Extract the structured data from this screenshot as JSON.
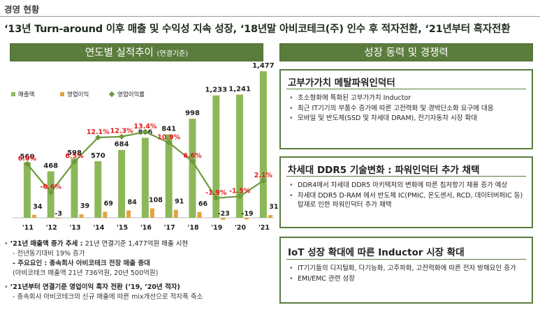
{
  "header": {
    "section_label": "경영 현황",
    "headline": "‘13년 Turn-around 이후 매출 및 수익성 지속 성장, ‘18년말 아비코테크(주) 인수 후 적자전환, ‘21년부터 흑자전환"
  },
  "left_panel": {
    "title": "연도별 실적추이",
    "subtitle": "(연결기준)"
  },
  "right_panel": {
    "title": "성장 동력 및 경쟁력"
  },
  "colors": {
    "revenue": "#8db85a",
    "op_income": "#e3a43d",
    "margin_line": "#6e9a3e",
    "margin_label": "#e41b1b",
    "accent": "#5a7c3c"
  },
  "chart_data": {
    "type": "bar",
    "categories": [
      "'11",
      "'12",
      "'13",
      "'14",
      "'15",
      "'16",
      "'17",
      "'18",
      "'19",
      "'20",
      "'21"
    ],
    "series": [
      {
        "name": "매출액",
        "type": "bar",
        "values": [
          560,
          468,
          598,
          570,
          684,
          806,
          841,
          998,
          1233,
          1241,
          1477
        ]
      },
      {
        "name": "영업이익",
        "type": "bar",
        "values": [
          34,
          -3,
          39,
          69,
          84,
          108,
          91,
          66,
          -23,
          -19,
          31
        ]
      },
      {
        "name": "영업이익률",
        "type": "line",
        "values": [
          6.0,
          -0.6,
          6.5,
          12.1,
          12.3,
          13.4,
          10.9,
          6.6,
          -1.9,
          -1.5,
          2.1
        ]
      }
    ],
    "labels": {
      "revenue": [
        "560",
        "468",
        "598",
        "570",
        "684",
        "806",
        "841",
        "998",
        "1,233",
        "1,241",
        "1,477"
      ],
      "op_income": [
        "34",
        "-3",
        "39",
        "69",
        "84",
        "108",
        "91",
        "66",
        "-23",
        "-19",
        "31"
      ],
      "margin": [
        "6.0%",
        "-0.6%",
        "6.5%",
        "12.1%",
        "12.3%",
        "13.4%",
        "10.9%",
        "6.6%",
        "-1.9%",
        "-1.5%",
        "2.1%"
      ]
    },
    "legend": [
      "매출액",
      "영업이익",
      "영업이익률"
    ],
    "legend_position": "top-left",
    "grid": false
  },
  "notes": {
    "n1_head": "’21년 매출액 증가 추세 : ",
    "n1_rest": "21년 연결기준 1,477억원 매출 시현",
    "n1_sub1": "- 전년동기대비 19% 증가",
    "n1_sub2": "- 주요요인 : 종속회사 아비코테크 전장 매출 증대",
    "n1_sub3": "(아비코테크 매출액 21년 736억원, 20년 500억원)",
    "n2_head": "’21년부터 연결기준 영업이익 흑자 전환 (’19, ’20년 적자)",
    "n2_sub1": "- 종속회사 아비코테크의 신규 매출에 따른 mix개선으로 적자폭 축소"
  },
  "cards": [
    {
      "title": "고부가가치 메탈파워인덕터",
      "items": [
        "초소형화에 특화된 고부가가치 Inductor",
        "최근 IT기기의 부품수 증가에 따른 고전력화 및 경박단소화 요구에 대응",
        "모바일 및 반도체(SSD 및 차세대 DRAM), 전기자동차 시장 확대"
      ]
    },
    {
      "title": "차세대 DDR5 기술변화 : 파워인덕터 추가 채택",
      "items": [
        "DDR4에서 차세대 DDR5 아키텍처의 변화에 따른 칩저항기 채용 증가 예상",
        "차세대 DDR5 D-RAM 에서 반도체 IC(PMIC, 온도센서, RCD, 데이터버퍼IC 등) 탑재로 인한 파워인덕터 추가 채택"
      ]
    },
    {
      "title": "IoT 성장 확대에 따른 Inductor 시장 확대",
      "items": [
        "IT기기들의 디지털화, 다기능화, 고주파화, 고전력화에 따른 전자 방해요인 증가",
        "EMI/EMC 관련 성장"
      ]
    }
  ],
  "bullet_symbol": "•"
}
